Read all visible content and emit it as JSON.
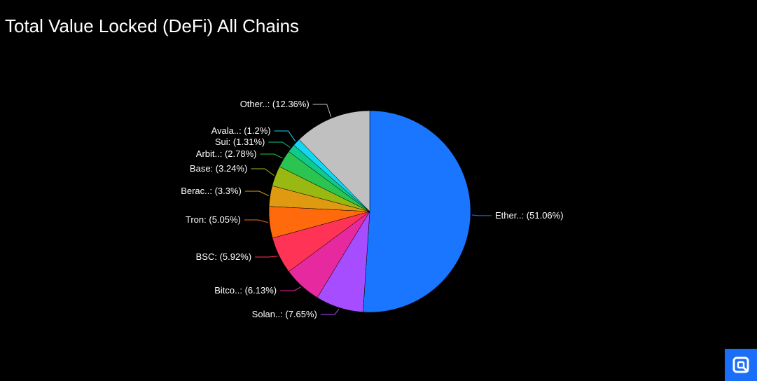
{
  "header": {
    "title": "Total Value Locked (DeFi) All Chains"
  },
  "corner_button": {
    "icon": "expand-icon",
    "color": "#1a6ef7"
  },
  "chart_data": {
    "type": "pie",
    "title": "Total Value Locked (DeFi) All Chains",
    "slices": [
      {
        "name": "Ether..",
        "value": 51.06,
        "label": "Ether..: (51.06%)",
        "color": "#1a75ff"
      },
      {
        "name": "Solan..",
        "value": 7.65,
        "label": "Solan..: (7.65%)",
        "color": "#a64dff"
      },
      {
        "name": "Bitco..",
        "value": 6.13,
        "label": "Bitco..: (6.13%)",
        "color": "#e6299e"
      },
      {
        "name": "BSC",
        "value": 5.92,
        "label": "BSC: (5.92%)",
        "color": "#ff3355"
      },
      {
        "name": "Tron",
        "value": 5.05,
        "label": "Tron: (5.05%)",
        "color": "#ff6a0d"
      },
      {
        "name": "Berac..",
        "value": 3.3,
        "label": "Berac..: (3.3%)",
        "color": "#e09a12"
      },
      {
        "name": "Base",
        "value": 3.24,
        "label": "Base: (3.24%)",
        "color": "#9ab812"
      },
      {
        "name": "Arbit..",
        "value": 2.78,
        "label": "Arbit..: (2.78%)",
        "color": "#2bc450"
      },
      {
        "name": "Sui",
        "value": 1.31,
        "label": "Sui: (1.31%)",
        "color": "#12c98c"
      },
      {
        "name": "Avala..",
        "value": 1.2,
        "label": "Avala..: (1.2%)",
        "color": "#14d6f0"
      },
      {
        "name": "Other..",
        "value": 12.36,
        "label": "Other..: (12.36%)",
        "color": "#c0c0c0"
      }
    ]
  }
}
